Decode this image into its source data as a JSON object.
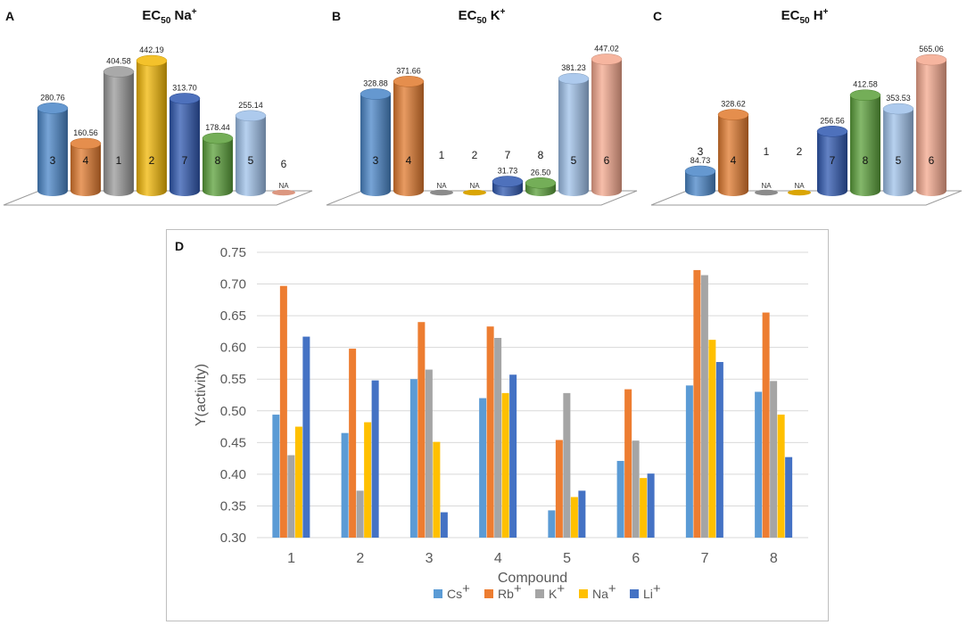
{
  "panels": {
    "A": {
      "letter": "A",
      "title_main": "EC",
      "title_sub": "50",
      "title_ion": " Na",
      "title_sup": "+"
    },
    "B": {
      "letter": "B",
      "title_main": "EC",
      "title_sub": "50",
      "title_ion": " K",
      "title_sup": "+"
    },
    "C": {
      "letter": "C",
      "title_main": "EC",
      "title_sub": "50",
      "title_ion": " H",
      "title_sup": "+"
    },
    "D": {
      "letter": "D"
    }
  },
  "colors": {
    "blue": "#4a86c8",
    "orange": "#e07a2e",
    "gray": "#9a9a9a",
    "gold": "#f2b705",
    "darkblue": "#2f58b0",
    "green": "#5ba03a",
    "lightblue": "#9fc1ea",
    "salmon": "#f4a88e"
  },
  "chart_data": [
    {
      "type": "bar",
      "panel": "A",
      "title": "EC50 Na+",
      "categories": [
        "3",
        "4",
        "1",
        "2",
        "7",
        "8",
        "5",
        "6"
      ],
      "values": [
        280.76,
        160.56,
        404.58,
        442.19,
        313.7,
        178.44,
        255.14,
        null
      ],
      "value_labels": [
        "280.76",
        "160.56",
        "404.58",
        "442.19",
        "313.70",
        "178.44",
        "255.14",
        "NA"
      ],
      "bar_colors": [
        "blue",
        "orange",
        "gray",
        "gold",
        "darkblue",
        "green",
        "lightblue",
        "salmon"
      ]
    },
    {
      "type": "bar",
      "panel": "B",
      "title": "EC50 K+",
      "categories": [
        "3",
        "4",
        "1",
        "2",
        "7",
        "8",
        "5",
        "6"
      ],
      "values": [
        328.88,
        371.66,
        null,
        null,
        31.73,
        26.5,
        381.23,
        447.02
      ],
      "value_labels": [
        "328.88",
        "371.66",
        "NA",
        "NA",
        "31.73",
        "26.50",
        "381.23",
        "447.02"
      ],
      "bar_colors": [
        "blue",
        "orange",
        "gray",
        "gold",
        "darkblue",
        "green",
        "lightblue",
        "salmon"
      ]
    },
    {
      "type": "bar",
      "panel": "C",
      "title": "EC50 H+",
      "categories": [
        "3",
        "4",
        "1",
        "2",
        "7",
        "8",
        "5",
        "6"
      ],
      "values": [
        84.73,
        328.62,
        null,
        null,
        256.56,
        412.58,
        353.53,
        565.06
      ],
      "value_labels": [
        "84.73",
        "328.62",
        "NA",
        "NA",
        "256.56",
        "412.58",
        "353.53",
        "565.06"
      ],
      "bar_colors": [
        "blue",
        "orange",
        "gray",
        "gold",
        "darkblue",
        "green",
        "lightblue",
        "salmon"
      ]
    },
    {
      "type": "bar",
      "panel": "D",
      "title": "",
      "xlabel": "Compound",
      "ylabel": "Y(activity)",
      "ylim": [
        0.3,
        0.75
      ],
      "yticks": [
        "0.30",
        "0.35",
        "0.40",
        "0.45",
        "0.50",
        "0.55",
        "0.60",
        "0.65",
        "0.70",
        "0.75"
      ],
      "categories": [
        "1",
        "2",
        "3",
        "4",
        "5",
        "6",
        "7",
        "8"
      ],
      "series": [
        {
          "name": "Cs",
          "sup": "+",
          "color": "#5b9bd5",
          "values": [
            0.494,
            0.465,
            0.55,
            0.52,
            0.343,
            0.421,
            0.54,
            0.53
          ]
        },
        {
          "name": "Rb",
          "sup": "+",
          "color": "#ed7d31",
          "values": [
            0.697,
            0.598,
            0.64,
            0.633,
            0.454,
            0.534,
            0.722,
            0.655
          ]
        },
        {
          "name": "K",
          "sup": "+",
          "color": "#a5a5a5",
          "values": [
            0.43,
            0.374,
            0.565,
            0.615,
            0.528,
            0.453,
            0.714,
            0.547
          ]
        },
        {
          "name": "Na",
          "sup": "+",
          "color": "#ffc000",
          "values": [
            0.475,
            0.482,
            0.451,
            0.528,
            0.364,
            0.394,
            0.612,
            0.494
          ]
        },
        {
          "name": "Li",
          "sup": "+",
          "color": "#4472c4",
          "values": [
            0.617,
            0.548,
            0.34,
            0.557,
            0.374,
            0.401,
            0.577,
            0.427
          ]
        }
      ],
      "grid": true,
      "legend": "bottom"
    }
  ]
}
